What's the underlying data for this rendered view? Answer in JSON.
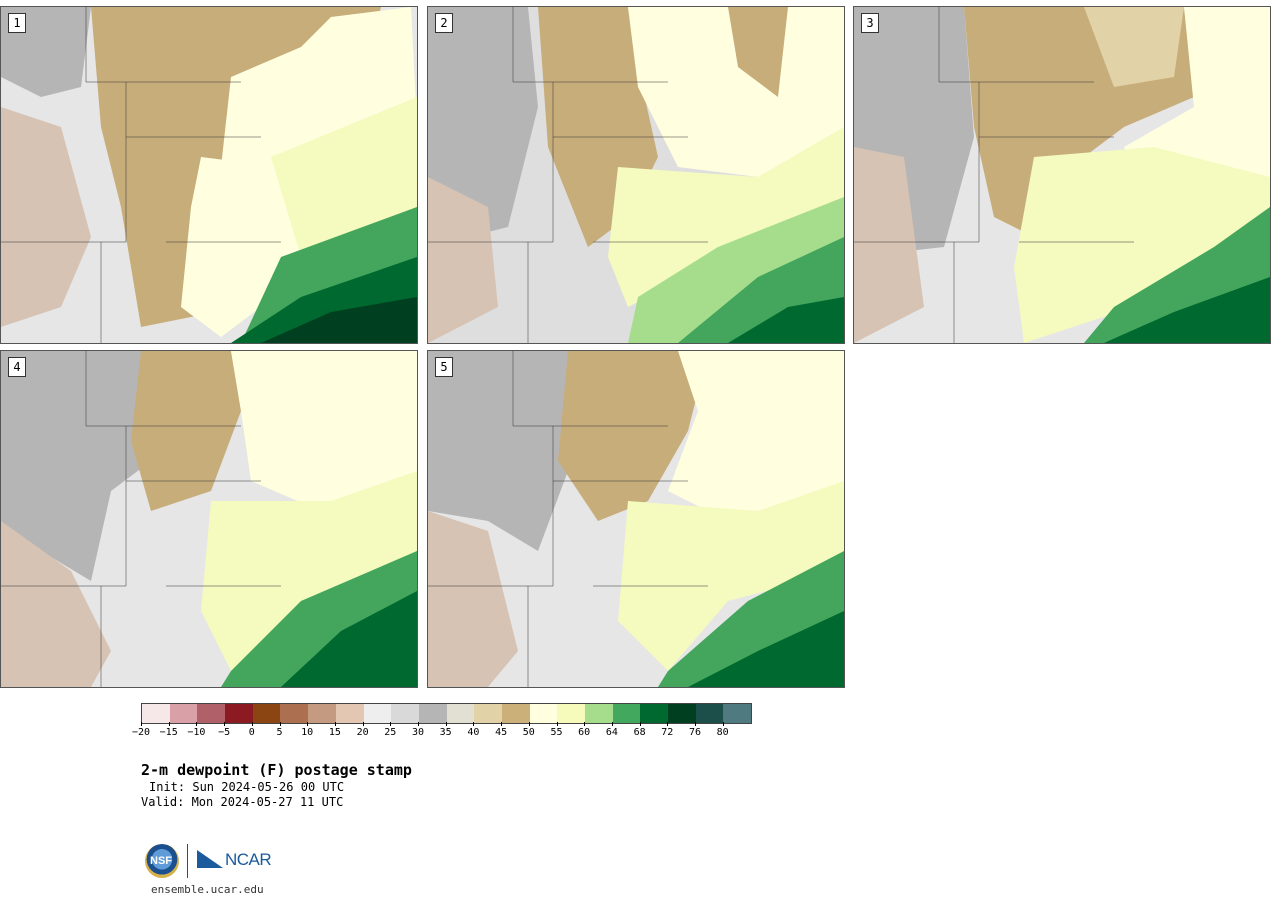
{
  "panels": [
    {
      "label": "1"
    },
    {
      "label": "2"
    },
    {
      "label": "3"
    },
    {
      "label": "4"
    },
    {
      "label": "5"
    }
  ],
  "colorbar": {
    "colors": [
      "#f6e8e8",
      "#d9a0a8",
      "#b06068",
      "#8b1a22",
      "#8b4513",
      "#ac7050",
      "#c49a80",
      "#e3c7b2",
      "#eeeeee",
      "#d9d9d9",
      "#b5b5b5",
      "#e2e0d2",
      "#e2d2a8",
      "#cbb07a",
      "#ffffe0",
      "#f6fbbb",
      "#a6dd8c",
      "#41a85d",
      "#00692f",
      "#003f1f",
      "#1c4f4a",
      "#4f7a80"
    ],
    "tick_labels": [
      "-20",
      "-15",
      "-10",
      "-5",
      "0",
      "5",
      "10",
      "15",
      "20",
      "25",
      "30",
      "35",
      "40",
      "45",
      "50",
      "55",
      "60",
      "64",
      "68",
      "72",
      "76",
      "80"
    ]
  },
  "title": "2-m dewpoint (F) postage stamp",
  "init": "Init: Sun 2024-05-26 00 UTC",
  "valid": "Valid: Mon 2024-05-27 11 UTC",
  "footer": {
    "nsf_text": "NSF",
    "ncar_text": "NCAR",
    "url": "ensemble.ucar.edu"
  }
}
